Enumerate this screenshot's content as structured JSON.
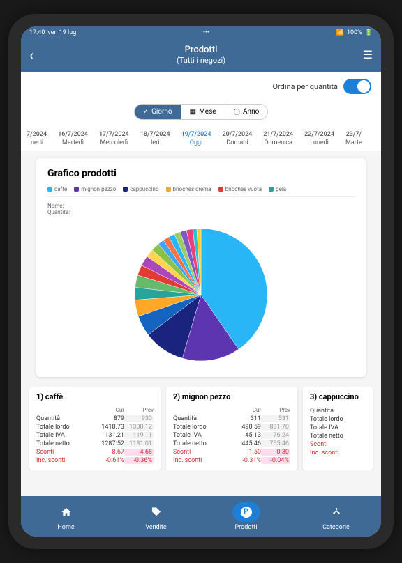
{
  "status": {
    "time": "17:40",
    "date": "ven 19 lug",
    "battery": "100%"
  },
  "header": {
    "title": "Prodotti",
    "subtitle": "(Tutti i negozi)"
  },
  "sort": {
    "label": "Ordina per quantità"
  },
  "periods": [
    {
      "label": "Giorno",
      "active": true,
      "icon": "check"
    },
    {
      "label": "Mese",
      "active": false,
      "icon": "grid"
    },
    {
      "label": "Anno",
      "active": false,
      "icon": "cal"
    }
  ],
  "dates": [
    {
      "top": "7/2024",
      "bottom": "nedi",
      "partial": true
    },
    {
      "top": "16/7/2024",
      "bottom": "Martedì"
    },
    {
      "top": "17/7/2024",
      "bottom": "Mercoledì"
    },
    {
      "top": "18/7/2024",
      "bottom": "Ieri"
    },
    {
      "top": "19/7/2024",
      "bottom": "Oggi",
      "active": true
    },
    {
      "top": "20/7/2024",
      "bottom": "Domani"
    },
    {
      "top": "21/7/2024",
      "bottom": "Domenica"
    },
    {
      "top": "22/7/2024",
      "bottom": "Lunedì"
    },
    {
      "top": "23/7/",
      "bottom": "Marte",
      "partial": true
    }
  ],
  "chart": {
    "title": "Grafico prodotti",
    "nome_label": "Nome:",
    "qty_label": "Quantità:",
    "legend": [
      {
        "label": "caffè",
        "color": "#29b6f6"
      },
      {
        "label": "mignon pezzo",
        "color": "#5e35b1"
      },
      {
        "label": "cappuccino",
        "color": "#1a237e"
      },
      {
        "label": "brioches crema",
        "color": "#ffa726"
      },
      {
        "label": "brioches vuota",
        "color": "#e53935"
      },
      {
        "label": "gela",
        "color": "#26a69a"
      }
    ],
    "slices": [
      {
        "value": 40,
        "color": "#29b6f6"
      },
      {
        "value": 14,
        "color": "#5e35b1"
      },
      {
        "value": 10,
        "color": "#1a237e"
      },
      {
        "value": 5,
        "color": "#1565c0"
      },
      {
        "value": 4,
        "color": "#ffa726"
      },
      {
        "value": 3,
        "color": "#26a69a"
      },
      {
        "value": 3,
        "color": "#66bb6a"
      },
      {
        "value": 2.5,
        "color": "#e53935"
      },
      {
        "value": 2.5,
        "color": "#ab47bc"
      },
      {
        "value": 2,
        "color": "#ffd54f"
      },
      {
        "value": 2,
        "color": "#8bc34a"
      },
      {
        "value": 1.5,
        "color": "#42a5f5"
      },
      {
        "value": 1.5,
        "color": "#ff7043"
      },
      {
        "value": 1.5,
        "color": "#29b6f6"
      },
      {
        "value": 1.5,
        "color": "#9ccc65"
      },
      {
        "value": 1.5,
        "color": "#7e57c2"
      },
      {
        "value": 1.5,
        "color": "#ec407a"
      },
      {
        "value": 1,
        "color": "#26c6da"
      },
      {
        "value": 1,
        "color": "#ffca28"
      }
    ]
  },
  "headers": {
    "cur": "Cur",
    "prev": "Prev"
  },
  "row_labels": {
    "qty": "Quantità",
    "lordo": "Totale lordo",
    "iva": "Totale IVA",
    "netto": "Totale netto",
    "sconti": "Sconti",
    "inc": "Inc. sconti"
  },
  "products": [
    {
      "name": "1) caffè",
      "qty_cur": "879",
      "qty_prev": "930",
      "lordo_cur": "1418.73",
      "lordo_prev": "1300.12",
      "iva_cur": "131.21",
      "iva_prev": "119.11",
      "netto_cur": "1287.52",
      "netto_prev": "1181.01",
      "sconti_cur": "-8.67",
      "sconti_prev": "-4.68",
      "inc_cur": "-0.61%",
      "inc_prev": "-0.36%"
    },
    {
      "name": "2) mignon pezzo",
      "qty_cur": "311",
      "qty_prev": "531",
      "lordo_cur": "490.59",
      "lordo_prev": "831.70",
      "iva_cur": "45.13",
      "iva_prev": "76.24",
      "netto_cur": "445.46",
      "netto_prev": "755.46",
      "sconti_cur": "-1.50",
      "sconti_prev": "-0.30",
      "inc_cur": "-0.31%",
      "inc_prev": "-0.04%"
    },
    {
      "name": "3) cappuccino",
      "qty_cur": "",
      "qty_prev": "",
      "lordo_cur": "",
      "lordo_prev": "",
      "iva_cur": "",
      "iva_prev": "",
      "netto_cur": "",
      "netto_prev": "",
      "sconti_cur": "",
      "sconti_prev": "",
      "inc_cur": "",
      "inc_prev": "",
      "partial": true
    }
  ],
  "nav": [
    {
      "label": "Home",
      "icon": "home"
    },
    {
      "label": "Vendite",
      "icon": "tag"
    },
    {
      "label": "Prodotti",
      "icon": "p",
      "active": true
    },
    {
      "label": "Categorie",
      "icon": "cat"
    }
  ]
}
